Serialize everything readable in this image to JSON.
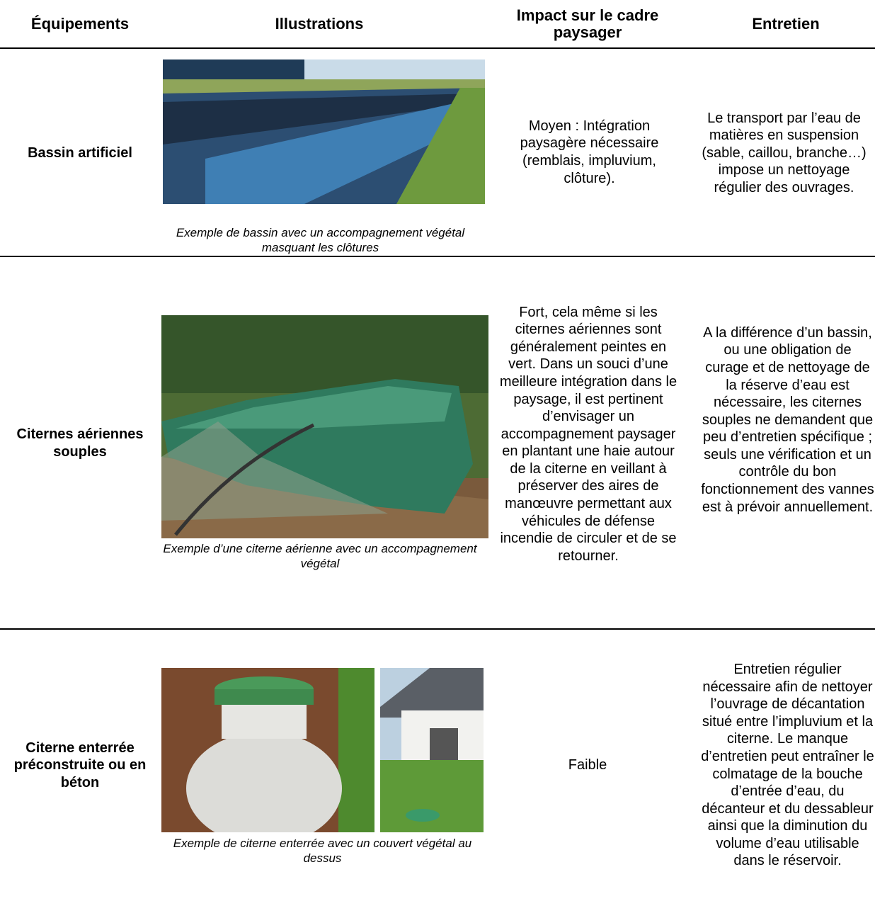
{
  "table": {
    "header": [
      "Équipements",
      "Illustrations",
      "Impact sur le cadre paysager",
      "Entretien"
    ],
    "rows": [
      {
        "equipment": "Bassin artificiel",
        "caption": "Exemple de bassin avec un accompagnement végétal masquant les clôtures",
        "impact": "Moyen : Intégration paysagère nécessaire (remblais, impluvium, clôture).",
        "maintenance": "Le transport par l’eau de matières en suspension (sable, caillou, branche…) impose un nettoyage régulier des ouvrages."
      },
      {
        "equipment": "Citernes aériennes souples",
        "caption": "Exemple d’une citerne aérienne avec un accompagnement végétal",
        "impact": "Fort, cela même si les citernes aériennes sont généralement peintes en vert. Dans un souci d’une meilleure intégration dans le paysage, il est pertinent d’envisager un accompagnement paysager en plantant une haie autour de la citerne en veillant à préserver des aires de manœuvre permettant aux véhicules de défense incendie de circuler et de se retourner.",
        "maintenance": "A la différence d’un bassin, ou une obligation de curage et de nettoyage de la réserve d’eau est nécessaire, les citernes souples ne demandent que peu d’entretien spécifique ; seuls une vérification et un contrôle du bon fonctionnement des vannes est à prévoir annuellement."
      },
      {
        "equipment": "Citerne enterrée préconstruite ou en béton",
        "caption": "Exemple de citerne enterrée avec un couvert végétal au dessus",
        "impact": "Faible",
        "maintenance": "Entretien régulier nécessaire afin de nettoyer l’ouvrage de décantation situé entre l’impluvium et la citerne. Le manque d’entretien peut entraîner le colmatage de la bouche d’entrée d’eau, du décanteur et du dessableur ainsi que la diminution du volume d’eau utilisable dans le réservoir."
      }
    ]
  }
}
